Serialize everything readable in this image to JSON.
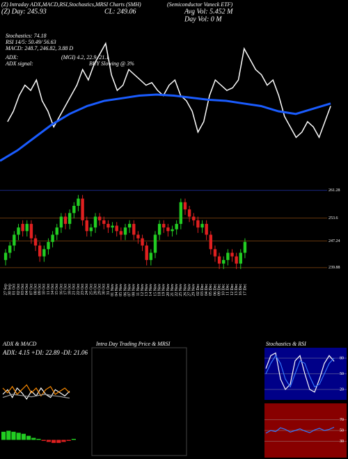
{
  "header": {
    "title": "(Z) Intraday ADX,MACD,RSI,Stochastics,MRSI Charts (SMH)",
    "company": "(Semiconductor Vaneck ETF)",
    "day": "(Z) Day: 245.93",
    "close": "CL: 249.06",
    "avg_vol": "Avg Vol: 5.452 M",
    "day_vol": "Day Vol: 0  M"
  },
  "indicators": [
    "Stochastics: 74.18",
    "RSI 14/5: 50.49/ 56.63",
    "MACD: 248.7, 246.82, 3.88 D"
  ],
  "adx": {
    "label": "ADX:",
    "value": "(MGI) 4.2, 22.9, 21.1",
    "signal_label": "ADX  signal:",
    "signal": "BUY Slowing @ 3%"
  },
  "chart_data": [
    {
      "type": "candlestick",
      "categories": [
        "27 Sep",
        "30 Sep",
        "01 Oct",
        "02 Oct",
        "03 Oct",
        "04 Oct",
        "07 Oct",
        "08 Oct",
        "09 Oct",
        "10 Oct",
        "11 Oct",
        "14 Oct",
        "15 Oct",
        "16 Oct",
        "17 Oct",
        "18 Oct",
        "21 Oct",
        "22 Oct",
        "23 Oct",
        "24 Oct",
        "25 Oct",
        "28 Oct",
        "29 Oct",
        "30 Oct",
        "31 Oct",
        "01 Nov",
        "04 Nov",
        "05 Nov",
        "06 Nov",
        "07 Nov",
        "08 Nov",
        "11 Nov",
        "12 Nov",
        "13 Nov",
        "14 Nov",
        "15 Nov",
        "18 Nov",
        "19 Nov",
        "20 Nov",
        "21 Nov",
        "22 Nov",
        "25 Nov",
        "26 Nov",
        "27 Nov",
        "29 Nov",
        "02 Dec",
        "03 Dec",
        "04 Dec",
        "05 Dec",
        "06 Dec",
        "09 Dec",
        "10 Dec",
        "11 Dec",
        "12 Dec",
        "13 Dec",
        "16 Dec",
        "17 Dec"
      ],
      "open": [
        242,
        244,
        246,
        249,
        252,
        250,
        252,
        248,
        246,
        243,
        245,
        247,
        249,
        251,
        254,
        252,
        255,
        257,
        259,
        253,
        250,
        251,
        254,
        253,
        252,
        251,
        251.5,
        250,
        249,
        251,
        252,
        249,
        248,
        246,
        242,
        244,
        249,
        252,
        251,
        250,
        250.5,
        252,
        258,
        256,
        254,
        253,
        251,
        252,
        249,
        245,
        243,
        241,
        242,
        244,
        243,
        241,
        244
      ],
      "high": [
        245,
        247,
        250,
        252,
        253,
        253,
        253,
        249,
        247,
        246,
        248,
        250,
        252,
        255,
        255,
        256,
        258,
        260,
        260,
        254,
        252,
        255,
        255,
        254,
        253,
        252.5,
        252.5,
        251,
        252,
        253,
        253,
        250,
        249,
        247,
        245,
        250,
        253,
        253,
        252,
        251.5,
        253,
        259,
        259,
        257,
        255,
        254,
        253,
        253,
        250,
        246,
        244,
        243,
        245,
        245,
        244,
        245,
        248
      ],
      "low": [
        240.5,
        242.5,
        244.5,
        247.5,
        248.5,
        248.5,
        246.5,
        244.5,
        241.5,
        241.5,
        243.5,
        245.5,
        247.5,
        249.5,
        250.5,
        250.5,
        253.5,
        255.5,
        251.5,
        248.5,
        248.5,
        249.5,
        251.5,
        250.5,
        249.5,
        249.5,
        248.5,
        247.5,
        247.5,
        249.5,
        247.5,
        246.5,
        244.5,
        240.5,
        240.5,
        242.5,
        247.5,
        249.5,
        248.5,
        248.5,
        249,
        250.5,
        254.5,
        252.5,
        251.5,
        249.5,
        249.5,
        247.5,
        243.5,
        241.5,
        239.5,
        239.5,
        240.5,
        241.5,
        239.5,
        239.5,
        242.5
      ],
      "close": [
        244,
        246,
        249,
        251,
        250,
        252,
        248,
        246,
        243,
        245,
        247,
        249,
        251,
        254,
        252,
        255,
        257,
        259,
        253,
        250,
        251,
        254,
        253,
        252,
        251,
        251.5,
        250,
        249,
        251,
        252,
        249,
        248,
        246,
        242,
        244,
        249,
        252,
        251,
        250,
        250.5,
        252,
        258,
        256,
        254,
        253,
        251,
        252,
        249,
        245,
        243,
        241,
        242,
        244,
        243,
        241,
        244,
        247
      ],
      "ma_values": [
        236.5,
        238.5,
        241,
        243.5,
        245.5,
        247,
        248,
        248.5,
        249,
        249.2,
        249,
        248.6,
        248.2,
        248,
        247.5,
        247,
        246,
        245.5,
        246.5,
        247.5
      ],
      "ma_color": "#1a5cff",
      "up_color": "#22cc22",
      "down_color": "#e02020",
      "ylim": [
        236,
        262
      ],
      "yticks": [
        261.28,
        253.6,
        247.24,
        239.88
      ]
    },
    {
      "type": "line",
      "title": "ADX  & MACD",
      "subtitle": "ADX: 4.15  +DI: 22.89  -DI: 21.06",
      "ylim": [
        0,
        100
      ],
      "series": [
        {
          "color": "#ffffff",
          "values": [
            40,
            55,
            30,
            60,
            45,
            25,
            50,
            35,
            60,
            40,
            30,
            55,
            45,
            35,
            50
          ]
        },
        {
          "color": "#ff8c00",
          "values": [
            60,
            45,
            65,
            40,
            55,
            70,
            45,
            60,
            35,
            55,
            65,
            40,
            50,
            60,
            45
          ]
        },
        {
          "color": "#999999",
          "values": [
            30,
            35,
            40,
            38,
            36,
            34,
            32,
            35,
            38,
            40,
            37,
            35,
            33,
            30,
            28
          ]
        }
      ]
    },
    {
      "type": "bar",
      "ylim": [
        -6,
        6
      ],
      "up_color": "#22cc22",
      "down_color": "#e02020",
      "values": [
        4,
        4.5,
        4,
        3.5,
        3,
        2,
        1,
        0.5,
        -0.5,
        -1,
        -1.5,
        -1.5,
        -1,
        -0.5,
        0.5
      ]
    },
    {
      "type": "empty",
      "title": "Intra Day Trading Price  & MRSI"
    },
    {
      "type": "line",
      "title": "Stochastics & RSI",
      "ylim": [
        0,
        100
      ],
      "yticks": [
        20,
        50,
        80
      ],
      "background": "#000088",
      "series": [
        {
          "color": "#ffffff",
          "values": [
            60,
            85,
            90,
            40,
            20,
            30,
            75,
            85,
            50,
            20,
            15,
            40,
            70,
            85,
            74
          ]
        },
        {
          "color": "#3377ff",
          "values": [
            50,
            70,
            85,
            70,
            40,
            25,
            50,
            75,
            70,
            45,
            25,
            30,
            50,
            70,
            80
          ]
        }
      ]
    },
    {
      "type": "line",
      "ylim": [
        0,
        100
      ],
      "yticks": [
        30,
        50,
        70
      ],
      "background": "#880000",
      "series": [
        {
          "color": "#3377ff",
          "values": [
            45,
            50,
            48,
            55,
            52,
            47,
            50,
            53,
            49,
            46,
            51,
            54,
            50,
            52,
            56
          ]
        }
      ]
    }
  ]
}
